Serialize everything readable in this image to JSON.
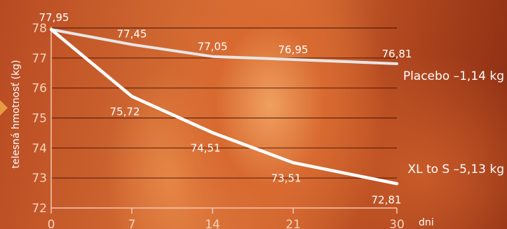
{
  "chart_data": {
    "type": "line",
    "x": [
      0,
      7,
      14,
      21,
      30
    ],
    "xlim": [
      0,
      30
    ],
    "ylim": [
      72,
      78
    ],
    "yticks": [
      72,
      73,
      74,
      75,
      76,
      77,
      78
    ],
    "ytick_labels": [
      "72",
      "73",
      "74",
      "75",
      "76",
      "77",
      "78"
    ],
    "xtick_labels": [
      "0",
      "7",
      "14",
      "21",
      "30"
    ],
    "xlabel": "dni",
    "ylabel": "telesná hmotnosť (kg)",
    "grid": "horizontal",
    "series": [
      {
        "name": "Placebo –1,14 kg",
        "values": [
          77.95,
          77.45,
          77.05,
          76.95,
          76.81
        ],
        "labels": [
          "77,95",
          "77,45",
          "77,05",
          "76,95",
          "76,81"
        ],
        "color": "#e6e6e6"
      },
      {
        "name": "XL to S –5,13 kg",
        "values": [
          77.95,
          75.72,
          74.51,
          73.51,
          72.81
        ],
        "labels": [
          "",
          "75,72",
          "74,51",
          "73,51",
          "72,81"
        ],
        "color": "#ffffff"
      }
    ]
  }
}
